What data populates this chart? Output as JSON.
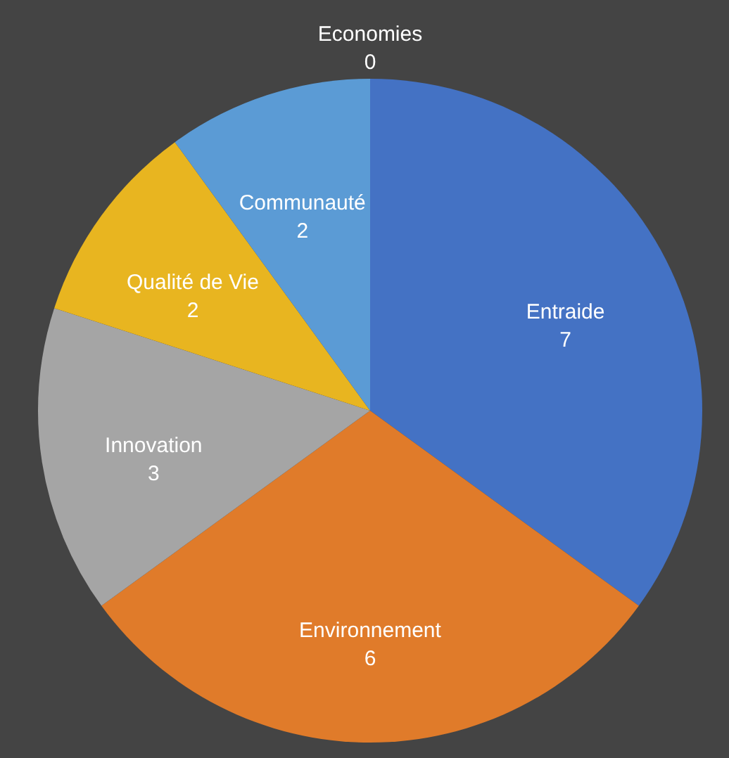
{
  "chart_data": {
    "type": "pie",
    "categories": [
      "Entraide",
      "Environnement",
      "Innovation",
      "Qualité de Vie",
      "Communauté",
      "Economies"
    ],
    "values": [
      7,
      6,
      3,
      2,
      2,
      0
    ],
    "colors": [
      "#4472c4",
      "#e07b2a",
      "#a5a5a5",
      "#e8b520",
      "#5b9bd5",
      "#70ad47"
    ],
    "value_labels": [
      "7",
      "6",
      "3",
      "2",
      "2",
      "0"
    ]
  }
}
